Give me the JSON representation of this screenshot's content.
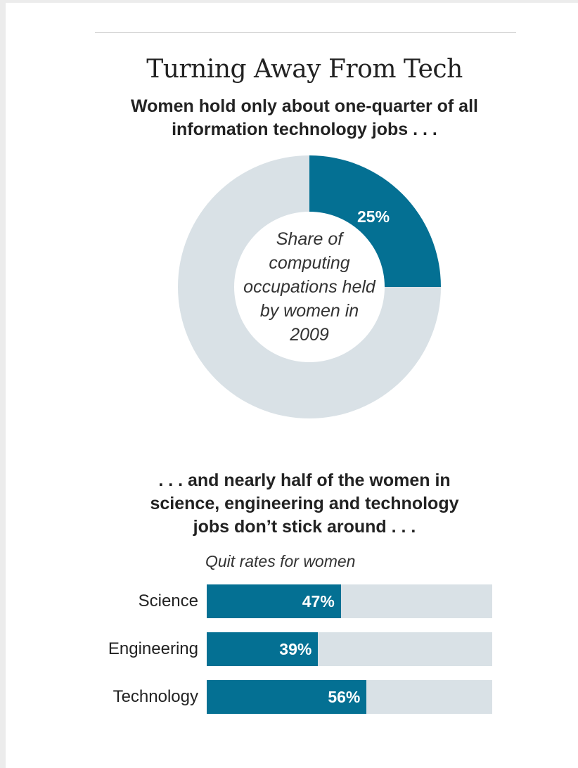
{
  "colors": {
    "accent": "#047093",
    "track": "#d9e1e6",
    "text": "#222222"
  },
  "header": {
    "title": "Turning Away From Tech"
  },
  "donut_section": {
    "subhead_lines": [
      "Women hold only about one-quarter of all",
      "information technology jobs . . ."
    ]
  },
  "bar_section": {
    "subhead_lines": [
      ". . . and nearly half of the women in",
      "science, engineering and technology",
      "jobs don’t stick around . . ."
    ]
  },
  "chart_data": [
    {
      "type": "pie",
      "subtype": "donut",
      "center_text_lines": [
        "Share of",
        "computing",
        "occupations held",
        "by women in",
        "2009"
      ],
      "slices": [
        {
          "label": "25%",
          "value": 25
        },
        {
          "label": "",
          "value": 75
        }
      ]
    },
    {
      "type": "bar",
      "orientation": "horizontal",
      "title": "Quit rates for women",
      "categories": [
        "Science",
        "Engineering",
        "Technology"
      ],
      "values": [
        47,
        39,
        56
      ],
      "value_labels": [
        "47%",
        "39%",
        "56%"
      ],
      "xlim": [
        0,
        100
      ]
    }
  ]
}
